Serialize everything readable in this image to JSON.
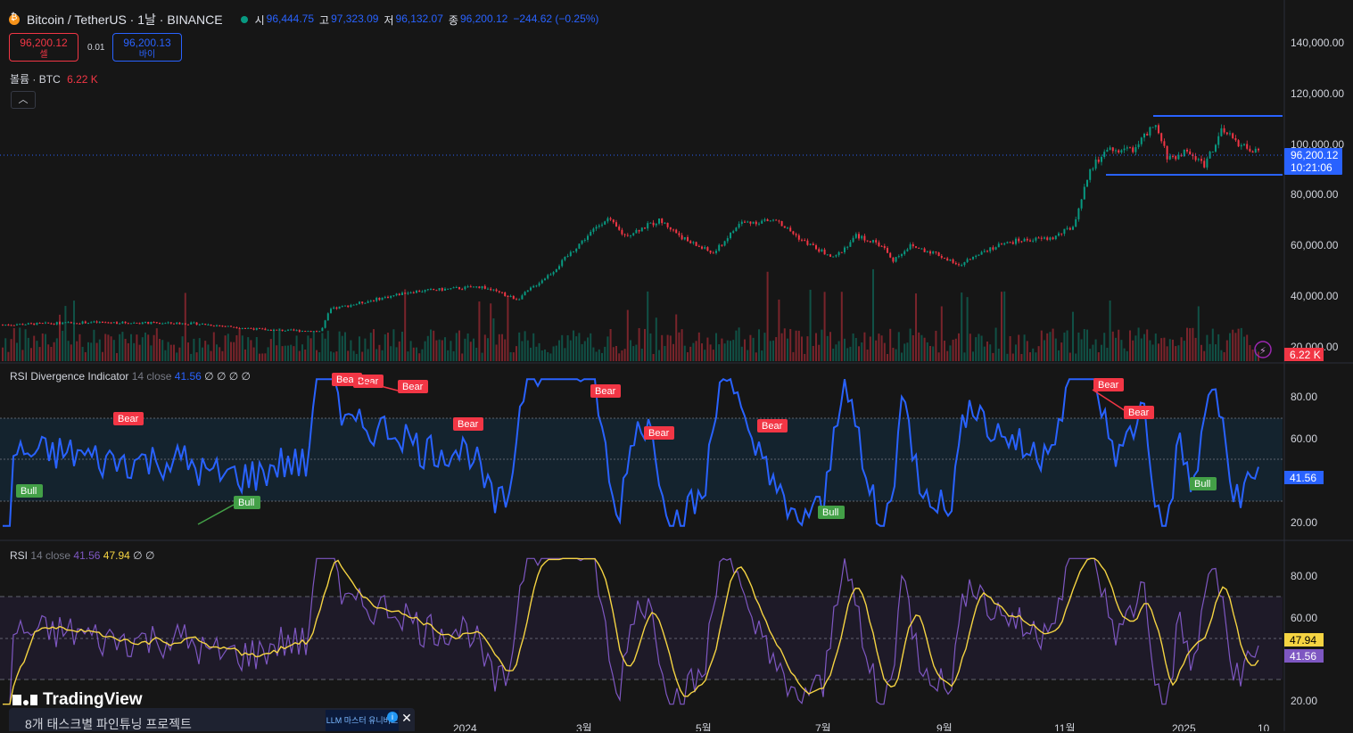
{
  "header": {
    "symbol": "Bitcoin / TetherUS · 1날 · BINANCE",
    "open_label": "시",
    "open": "96,444.75",
    "high_label": "고",
    "high": "97,323.09",
    "low_label": "저",
    "low": "96,132.07",
    "close_label": "종",
    "close": "96,200.12",
    "change": "−244.62 (−0.25%)"
  },
  "trade": {
    "sell_price": "96,200.12",
    "sell_label": "셀",
    "spread": "0.01",
    "buy_price": "96,200.13",
    "buy_label": "바이"
  },
  "volume_legend": {
    "label": "볼륨 · BTC",
    "value": "6.22 K"
  },
  "collapse_icon": "chevron-up-icon",
  "price_axis": {
    "ticks": [
      "140,000.00",
      "120,000.00",
      "100,000.00",
      "80,000.00",
      "60,000.00",
      "40,000.00",
      "20,000.00"
    ],
    "current_price": "96,200.12",
    "countdown": "10:21:06",
    "volume_badge": "6.22 K"
  },
  "rsi_div": {
    "legend_title": "RSI Divergence Indicator",
    "legend_params": "14 close",
    "legend_value": "41.56",
    "legend_extra": "∅ ∅ ∅ ∅",
    "ticks": [
      "80.00",
      "60.00",
      "20.00"
    ],
    "current": "41.56",
    "bear_label": "Bear",
    "bull_label": "Bull"
  },
  "rsi": {
    "legend_title": "RSI",
    "legend_params": "14 close",
    "value": "41.56",
    "ma_value": "47.94",
    "legend_extra": "∅ ∅",
    "ticks": [
      "80.00",
      "60.00",
      "20.00"
    ]
  },
  "time_axis": [
    "2024",
    "3월",
    "5월",
    "7월",
    "9월",
    "11월",
    "2025",
    "10"
  ],
  "branding": {
    "logo": "TradingView"
  },
  "ad": {
    "text": "8개 태스크별 파인튜닝 프로젝트",
    "image_text": "LLM 마스터 유니버스"
  },
  "colors": {
    "bull": "#089981",
    "bear": "#f23645",
    "accent": "#2962ff",
    "rsi_line": "#7e57c2",
    "rsi_ma": "#f5d442",
    "div_line": "#2962ff"
  }
}
